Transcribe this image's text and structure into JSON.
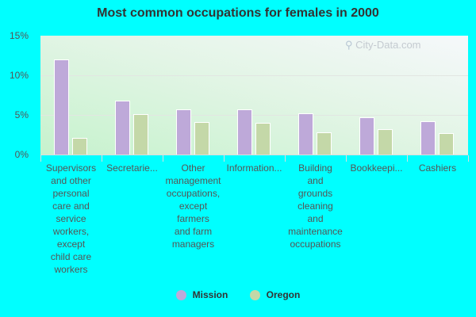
{
  "title": "Most common occupations for females in 2000",
  "watermark": "City-Data.com",
  "colors": {
    "Mission": "#bea9d9",
    "Oregon": "#c4d8a8",
    "background": "#00ffff"
  },
  "legend": [
    {
      "label": "Mission",
      "color": "#bea9d9"
    },
    {
      "label": "Oregon",
      "color": "#c4d8a8"
    }
  ],
  "y_ticks": [
    "0%",
    "5%",
    "10%",
    "15%"
  ],
  "x_labels": [
    "Supervisors\nand other\npersonal\ncare and\nservice\nworkers,\nexcept\nchild care\nworkers",
    "Secretarie...",
    "Other\nmanagement\noccupations,\nexcept\nfarmers\nand farm\nmanagers",
    "Information...",
    "Building\nand\ngrounds\ncleaning\nand\nmaintenance\noccupations",
    "Bookkeepi...",
    "Cashiers"
  ],
  "chart_data": {
    "type": "bar",
    "title": "Most common occupations for females in 2000",
    "xlabel": "",
    "ylabel": "",
    "ylim": [
      0,
      15
    ],
    "y_tick_labels": [
      "0%",
      "5%",
      "10%",
      "15%"
    ],
    "grid": true,
    "legend_position": "bottom",
    "categories": [
      "Supervisors and other personal care and service workers, except child care workers",
      "Secretaries...",
      "Other management occupations, except farmers and farm managers",
      "Information...",
      "Building and grounds cleaning and maintenance occupations",
      "Bookkeeping...",
      "Cashiers"
    ],
    "series": [
      {
        "name": "Mission",
        "values": [
          12.0,
          6.8,
          5.7,
          5.7,
          5.2,
          4.7,
          4.2
        ]
      },
      {
        "name": "Oregon",
        "values": [
          2.1,
          5.1,
          4.1,
          4.0,
          2.8,
          3.2,
          2.7
        ]
      }
    ]
  }
}
